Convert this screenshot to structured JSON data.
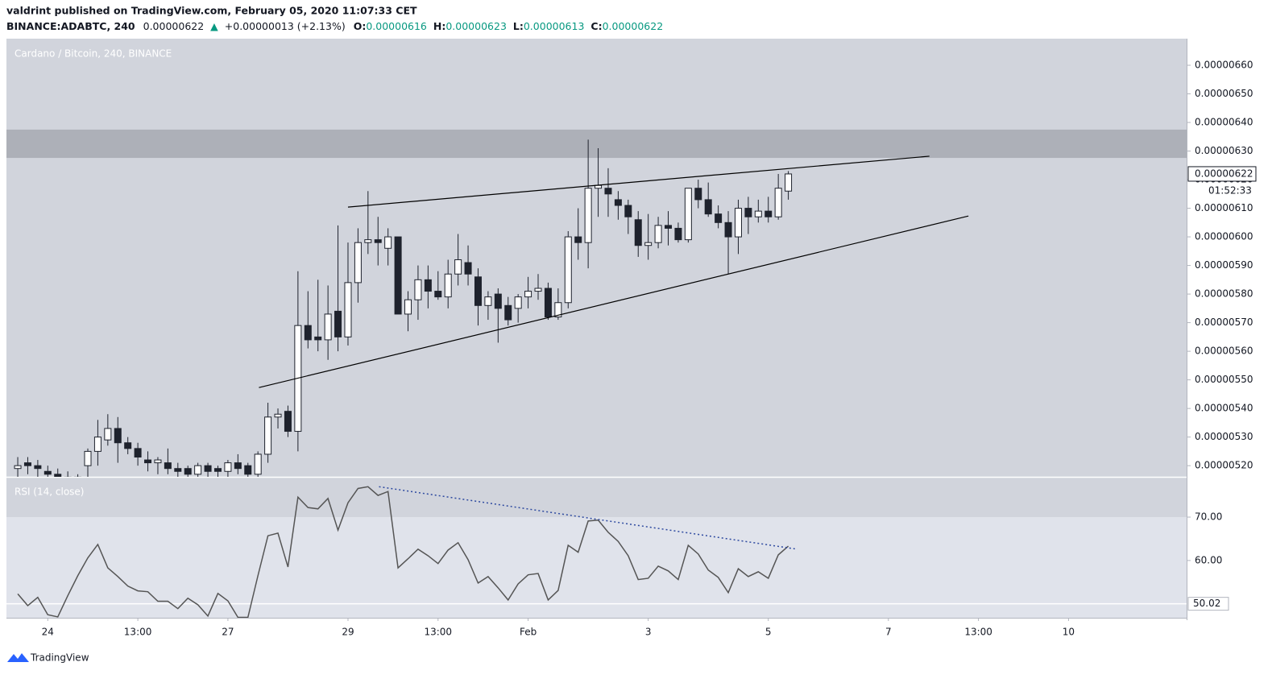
{
  "header": {
    "author_line": "valdrint published on TradingView.com, February 05, 2020 11:07:33 CET",
    "symbol": "BINANCE:ADABTC, 240",
    "last": "0.00000622",
    "arrow": "▲",
    "change": "+0.00000013 (+2.13%)",
    "ohlc": [
      {
        "label": "O:",
        "value": "0.00000616"
      },
      {
        "label": "H:",
        "value": "0.00000623"
      },
      {
        "label": "L:",
        "value": "0.00000613"
      },
      {
        "label": "C:",
        "value": "0.00000622"
      }
    ]
  },
  "footer": {
    "brand": "TradingView"
  },
  "chart_data": [
    {
      "type": "candlestick",
      "title": "Cardano / Bitcoin, 240, BINANCE",
      "up_color": "#ffffff",
      "down_color": "#1e222d",
      "outline_color": "#1e222d",
      "categories": [
        null,
        null,
        null,
        null,
        null,
        null,
        null,
        null,
        null,
        null,
        null,
        null,
        null,
        null,
        null,
        null,
        null,
        null,
        null,
        null,
        null,
        null,
        null,
        null,
        null,
        null,
        null,
        null,
        null,
        null,
        null,
        null,
        null,
        null,
        null,
        null,
        null,
        null,
        null,
        null,
        null,
        null,
        null,
        null,
        null,
        null,
        null,
        null,
        null,
        null,
        null,
        null,
        null,
        null,
        null,
        null,
        null,
        null,
        null,
        null,
        null,
        null,
        null,
        null,
        null,
        null,
        null,
        null,
        null,
        null,
        null,
        null,
        null,
        null,
        null,
        null,
        null,
        null
      ],
      "open": [
        5.19e-06,
        5.21e-06,
        5.2e-06,
        5.18e-06,
        5.17e-06,
        5.16e-06,
        5.15e-06,
        5.2e-06,
        5.25e-06,
        5.29e-06,
        5.33e-06,
        5.28e-06,
        5.26e-06,
        5.22e-06,
        5.21e-06,
        5.21e-06,
        5.19e-06,
        5.19e-06,
        5.17e-06,
        5.2e-06,
        5.19e-06,
        5.18e-06,
        5.21e-06,
        5.2e-06,
        5.17e-06,
        5.24e-06,
        5.37e-06,
        5.39e-06,
        5.32e-06,
        5.69e-06,
        5.65e-06,
        5.64e-06,
        5.74e-06,
        5.65e-06,
        5.84e-06,
        5.98e-06,
        5.99e-06,
        5.96e-06,
        6e-06,
        5.73e-06,
        5.78e-06,
        5.85e-06,
        5.81e-06,
        5.79e-06,
        5.87e-06,
        5.91e-06,
        5.86e-06,
        5.76e-06,
        5.8e-06,
        5.76e-06,
        5.75e-06,
        5.79e-06,
        5.81e-06,
        5.82e-06,
        5.72e-06,
        5.77e-06,
        6e-06,
        5.98e-06,
        6.17e-06,
        6.17e-06,
        6.13e-06,
        6.11e-06,
        6.06e-06,
        5.97e-06,
        5.98e-06,
        6.04e-06,
        6.03e-06,
        5.99e-06,
        6.17e-06,
        6.13e-06,
        6.08e-06,
        6.05e-06,
        6e-06,
        6.1e-06,
        6.07e-06,
        6.09e-06,
        6.07e-06,
        6.16e-06
      ],
      "high": [
        5.23e-06,
        5.23e-06,
        5.22e-06,
        5.2e-06,
        5.19e-06,
        5.18e-06,
        5.17e-06,
        5.26e-06,
        5.36e-06,
        5.38e-06,
        5.37e-06,
        5.3e-06,
        5.28e-06,
        5.25e-06,
        5.23e-06,
        5.26e-06,
        5.21e-06,
        5.2e-06,
        5.21e-06,
        5.21e-06,
        5.2e-06,
        5.22e-06,
        5.24e-06,
        5.21e-06,
        5.25e-06,
        5.42e-06,
        5.4e-06,
        5.41e-06,
        5.88e-06,
        5.81e-06,
        5.85e-06,
        5.83e-06,
        6.04e-06,
        5.98e-06,
        6.03e-06,
        6.16e-06,
        6.07e-06,
        6.03e-06,
        6e-06,
        5.81e-06,
        5.9e-06,
        5.9e-06,
        5.88e-06,
        5.92e-06,
        6.01e-06,
        5.97e-06,
        5.89e-06,
        5.81e-06,
        5.82e-06,
        5.79e-06,
        5.8e-06,
        5.86e-06,
        5.87e-06,
        5.84e-06,
        5.82e-06,
        6.02e-06,
        6.1e-06,
        6.34e-06,
        6.31e-06,
        6.24e-06,
        6.16e-06,
        6.13e-06,
        6.09e-06,
        6.08e-06,
        6.07e-06,
        6.09e-06,
        6.05e-06,
        6.17e-06,
        6.2e-06,
        6.19e-06,
        6.11e-06,
        6.09e-06,
        6.13e-06,
        6.14e-06,
        6.13e-06,
        6.14e-06,
        6.22e-06,
        6.23e-06
      ],
      "low": [
        5.16e-06,
        5.17e-06,
        5.16e-06,
        5.15e-06,
        5.14e-06,
        5.13e-06,
        5.12e-06,
        5.14e-06,
        5.2e-06,
        5.27e-06,
        5.21e-06,
        5.24e-06,
        5.2e-06,
        5.18e-06,
        5.17e-06,
        5.17e-06,
        5.16e-06,
        5.16e-06,
        5.15e-06,
        5.16e-06,
        5.16e-06,
        5.16e-06,
        5.17e-06,
        5.16e-06,
        5.16e-06,
        5.21e-06,
        5.33e-06,
        5.3e-06,
        5.25e-06,
        5.61e-06,
        5.6e-06,
        5.57e-06,
        5.6e-06,
        5.62e-06,
        5.77e-06,
        5.94e-06,
        5.9e-06,
        5.9e-06,
        5.73e-06,
        5.67e-06,
        5.71e-06,
        5.75e-06,
        5.78e-06,
        5.75e-06,
        5.83e-06,
        5.83e-06,
        5.69e-06,
        5.71e-06,
        5.63e-06,
        5.69e-06,
        5.7e-06,
        5.75e-06,
        5.78e-06,
        5.71e-06,
        5.71e-06,
        5.75e-06,
        5.92e-06,
        5.89e-06,
        6.07e-06,
        6.07e-06,
        6.06e-06,
        6.01e-06,
        5.93e-06,
        5.92e-06,
        5.96e-06,
        5.97e-06,
        5.98e-06,
        5.98e-06,
        6.1e-06,
        6.07e-06,
        6.03e-06,
        5.87e-06,
        5.94e-06,
        6.01e-06,
        6.05e-06,
        6.05e-06,
        6.06e-06,
        6.13e-06
      ],
      "close": [
        5.2e-06,
        5.2e-06,
        5.19e-06,
        5.17e-06,
        5.16e-06,
        5.15e-06,
        5.16e-06,
        5.25e-06,
        5.3e-06,
        5.33e-06,
        5.28e-06,
        5.26e-06,
        5.23e-06,
        5.21e-06,
        5.22e-06,
        5.19e-06,
        5.18e-06,
        5.17e-06,
        5.2e-06,
        5.18e-06,
        5.18e-06,
        5.21e-06,
        5.19e-06,
        5.17e-06,
        5.24e-06,
        5.37e-06,
        5.38e-06,
        5.32e-06,
        5.69e-06,
        5.64e-06,
        5.64e-06,
        5.73e-06,
        5.65e-06,
        5.84e-06,
        5.98e-06,
        5.99e-06,
        5.98e-06,
        6e-06,
        5.73e-06,
        5.78e-06,
        5.85e-06,
        5.81e-06,
        5.79e-06,
        5.87e-06,
        5.92e-06,
        5.87e-06,
        5.76e-06,
        5.79e-06,
        5.75e-06,
        5.71e-06,
        5.79e-06,
        5.81e-06,
        5.82e-06,
        5.72e-06,
        5.77e-06,
        6e-06,
        5.98e-06,
        6.17e-06,
        6.18e-06,
        6.15e-06,
        6.11e-06,
        6.07e-06,
        5.97e-06,
        5.98e-06,
        6.04e-06,
        6.03e-06,
        5.99e-06,
        6.17e-06,
        6.13e-06,
        6.08e-06,
        6.05e-06,
        6e-06,
        6.1e-06,
        6.07e-06,
        6.09e-06,
        6.07e-06,
        6.17e-06,
        6.22e-06
      ],
      "xlim": [
        -1.13,
        116.8
      ],
      "xticks": [
        {
          "value": 3,
          "label": "24"
        },
        {
          "value": 12,
          "label": "13:00"
        },
        {
          "value": 21,
          "label": "27"
        },
        {
          "value": 33,
          "label": "29"
        },
        {
          "value": 42,
          "label": "13:00"
        },
        {
          "value": 51,
          "label": "Feb"
        },
        {
          "value": 63,
          "label": "3"
        },
        {
          "value": 75,
          "label": "5"
        },
        {
          "value": 87,
          "label": "7"
        },
        {
          "value": 96,
          "label": "13:00"
        },
        {
          "value": 105,
          "label": "10"
        }
      ],
      "ylim": [
        5.161e-06,
        6.693e-06
      ],
      "yticks": [
        {
          "value": 6.6e-06,
          "label": "0.00000660"
        },
        {
          "value": 6.5e-06,
          "label": "0.00000650"
        },
        {
          "value": 6.4e-06,
          "label": "0.00000640"
        },
        {
          "value": 6.3e-06,
          "label": "0.00000630"
        },
        {
          "value": 6.2e-06,
          "label": "0.00000620"
        },
        {
          "value": 6.1e-06,
          "label": "0.00000610"
        },
        {
          "value": 6e-06,
          "label": "0.00000600"
        },
        {
          "value": 5.9e-06,
          "label": "0.00000590"
        },
        {
          "value": 5.8e-06,
          "label": "0.00000580"
        },
        {
          "value": 5.7e-06,
          "label": "0.00000570"
        },
        {
          "value": 5.6e-06,
          "label": "0.00000560"
        },
        {
          "value": 5.5e-06,
          "label": "0.00000550"
        },
        {
          "value": 5.4e-06,
          "label": "0.00000540"
        },
        {
          "value": 5.3e-06,
          "label": "0.00000530"
        },
        {
          "value": 5.2e-06,
          "label": "0.00000520"
        }
      ],
      "zone": [
        6.276e-06,
        6.375e-06
      ],
      "zone_color": "#adb0b8",
      "trendlines": [
        {
          "x": [
            33.0,
            91.1
          ],
          "y": [
            6.104e-06,
            6.282e-06
          ]
        },
        {
          "x": [
            24.1,
            95.0
          ],
          "y": [
            5.473e-06,
            6.073e-06
          ]
        }
      ],
      "last_price": {
        "value": 6.22e-06,
        "label": "0.00000622"
      },
      "countdown": "01:52:33"
    },
    {
      "type": "line",
      "title": "RSI (14, close)",
      "color": "#555555",
      "values": [
        52.3,
        49.6,
        51.5,
        47.5,
        47.0,
        51.9,
        56.5,
        60.6,
        63.7,
        58.3,
        56.3,
        54.1,
        53.0,
        52.8,
        50.6,
        50.6,
        48.9,
        51.3,
        49.8,
        47.2,
        52.4,
        50.7,
        46.9,
        46.9,
        56.5,
        65.7,
        66.3,
        58.5,
        74.6,
        72.2,
        71.9,
        74.3,
        67.0,
        73.3,
        76.6,
        77.0,
        75.0,
        75.9,
        58.3,
        60.4,
        62.6,
        61.1,
        59.3,
        62.4,
        64.1,
        60.2,
        54.8,
        56.3,
        53.7,
        50.9,
        54.6,
        56.7,
        57.0,
        50.9,
        53.1,
        63.5,
        61.9,
        69.1,
        69.3,
        66.5,
        64.4,
        61.1,
        55.6,
        55.9,
        58.7,
        57.6,
        55.6,
        63.5,
        61.5,
        57.8,
        56.1,
        52.6,
        58.1,
        56.3,
        57.4,
        55.9,
        61.3,
        63.3
      ],
      "ylim": [
        46.8,
        79.1
      ],
      "yticks": [
        {
          "value": 70,
          "label": "70.00"
        },
        {
          "value": 60,
          "label": "60.00"
        }
      ],
      "hline": 50.02,
      "trendline": {
        "x": [
          36.1,
          77.9
        ],
        "y": [
          77.0,
          62.6
        ],
        "color": "#2e4aa0"
      }
    }
  ]
}
